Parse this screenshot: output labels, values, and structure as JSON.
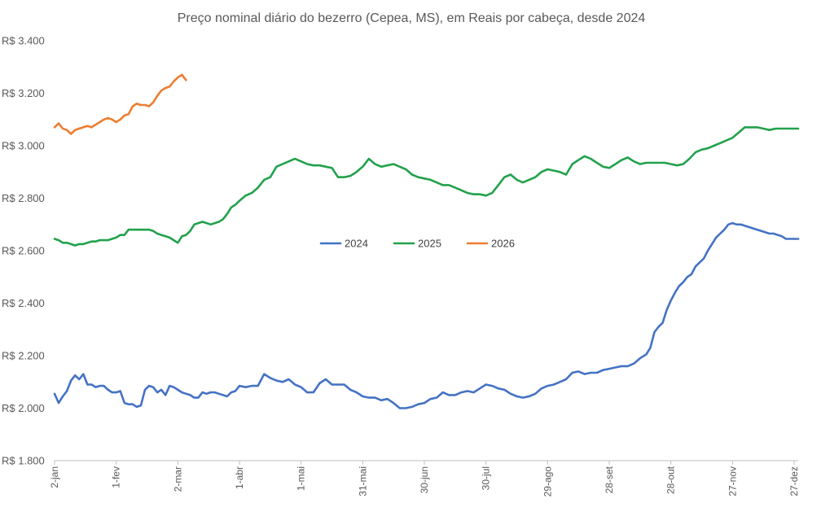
{
  "chart_data": {
    "type": "line",
    "title": "Preço nominal diário do bezerro (Cepea, MS), em Reais por cabeça, desde 2024",
    "xlabel": "",
    "ylabel": "",
    "ylim": [
      1800,
      3400
    ],
    "yticks": [
      1800,
      2000,
      2200,
      2400,
      2600,
      2800,
      3000,
      3200,
      3400
    ],
    "ytick_labels": [
      "R$ 1.800",
      "R$ 2.000",
      "R$ 2.200",
      "R$ 2.400",
      "R$ 2.600",
      "R$ 2.800",
      "R$ 3.000",
      "R$ 3.200",
      "R$ 3.400"
    ],
    "xlim_day_of_year": [
      2,
      364
    ],
    "xticks_day_of_year": [
      2,
      32,
      62,
      92,
      122,
      152,
      182,
      212,
      242,
      272,
      302,
      332,
      362
    ],
    "xtick_labels": [
      "2-jan",
      "1-fev",
      "2-mar",
      "1-abr",
      "1-mai",
      "31-mai",
      "30-jun",
      "30-jul",
      "29-ago",
      "28-set",
      "28-out",
      "27-nov",
      "27-dez"
    ],
    "grid": false,
    "legend_position": "center",
    "series": [
      {
        "name": "2024",
        "color": "#4472C4",
        "x": [
          2,
          4,
          6,
          8,
          10,
          12,
          14,
          16,
          18,
          20,
          22,
          24,
          26,
          28,
          30,
          32,
          34,
          36,
          38,
          40,
          42,
          44,
          46,
          48,
          50,
          52,
          54,
          56,
          58,
          60,
          62,
          64,
          66,
          68,
          70,
          72,
          74,
          76,
          78,
          80,
          82,
          84,
          86,
          88,
          90,
          92,
          95,
          98,
          101,
          104,
          107,
          110,
          113,
          116,
          119,
          122,
          125,
          128,
          131,
          134,
          137,
          140,
          143,
          146,
          149,
          152,
          155,
          158,
          161,
          164,
          167,
          170,
          173,
          176,
          179,
          182,
          185,
          188,
          191,
          194,
          197,
          200,
          203,
          206,
          209,
          212,
          215,
          218,
          221,
          224,
          227,
          230,
          233,
          236,
          239,
          242,
          245,
          248,
          251,
          254,
          257,
          260,
          263,
          266,
          269,
          272,
          275,
          278,
          281,
          284,
          287,
          290,
          292,
          294,
          296,
          298,
          300,
          302,
          304,
          306,
          308,
          310,
          312,
          314,
          316,
          318,
          320,
          322,
          324,
          326,
          328,
          330,
          332,
          334,
          336,
          338,
          340,
          342,
          344,
          346,
          348,
          350,
          352,
          354,
          356,
          358,
          360,
          362,
          364
        ],
        "values": [
          2055,
          2020,
          2045,
          2065,
          2105,
          2125,
          2110,
          2130,
          2090,
          2090,
          2080,
          2085,
          2085,
          2070,
          2060,
          2060,
          2065,
          2020,
          2015,
          2015,
          2005,
          2010,
          2070,
          2085,
          2080,
          2060,
          2070,
          2050,
          2085,
          2080,
          2070,
          2060,
          2055,
          2050,
          2040,
          2040,
          2060,
          2055,
          2060,
          2060,
          2055,
          2050,
          2045,
          2060,
          2065,
          2085,
          2080,
          2085,
          2085,
          2130,
          2115,
          2105,
          2100,
          2110,
          2090,
          2080,
          2060,
          2060,
          2095,
          2110,
          2090,
          2090,
          2090,
          2070,
          2060,
          2045,
          2040,
          2040,
          2030,
          2035,
          2020,
          2000,
          2000,
          2005,
          2015,
          2020,
          2035,
          2040,
          2060,
          2050,
          2050,
          2060,
          2065,
          2060,
          2075,
          2090,
          2085,
          2075,
          2070,
          2055,
          2045,
          2040,
          2045,
          2055,
          2075,
          2085,
          2090,
          2100,
          2110,
          2135,
          2140,
          2130,
          2135,
          2135,
          2145,
          2150,
          2155,
          2160,
          2160,
          2170,
          2190,
          2205,
          2230,
          2290,
          2310,
          2325,
          2375,
          2410,
          2440,
          2465,
          2480,
          2500,
          2510,
          2540,
          2555,
          2570,
          2600,
          2625,
          2650,
          2665,
          2680,
          2700,
          2705,
          2700,
          2700,
          2695,
          2690,
          2685,
          2680,
          2675,
          2670,
          2665,
          2665,
          2660,
          2655,
          2645,
          2645,
          2645,
          2645
        ]
      },
      {
        "name": "2025",
        "color": "#22A14C",
        "x": [
          2,
          4,
          6,
          8,
          10,
          12,
          14,
          16,
          18,
          20,
          22,
          24,
          26,
          28,
          30,
          32,
          34,
          36,
          38,
          40,
          42,
          44,
          46,
          48,
          50,
          52,
          54,
          56,
          58,
          60,
          62,
          64,
          66,
          68,
          70,
          72,
          74,
          76,
          78,
          80,
          82,
          84,
          86,
          88,
          90,
          92,
          95,
          98,
          101,
          104,
          107,
          110,
          113,
          116,
          119,
          122,
          125,
          128,
          131,
          134,
          137,
          140,
          143,
          146,
          149,
          152,
          155,
          158,
          161,
          164,
          167,
          170,
          173,
          176,
          179,
          182,
          185,
          188,
          191,
          194,
          197,
          200,
          203,
          206,
          209,
          212,
          215,
          218,
          221,
          224,
          227,
          230,
          233,
          236,
          239,
          242,
          245,
          248,
          251,
          254,
          257,
          260,
          263,
          266,
          269,
          272,
          275,
          278,
          281,
          284,
          287,
          290,
          293,
          296,
          299,
          302,
          305,
          308,
          311,
          314,
          317,
          320,
          323,
          326,
          329,
          332,
          335,
          338,
          341,
          344,
          347,
          350,
          353,
          356,
          359,
          362,
          364
        ],
        "values": [
          2645,
          2640,
          2630,
          2630,
          2625,
          2620,
          2625,
          2625,
          2630,
          2635,
          2635,
          2640,
          2640,
          2640,
          2645,
          2650,
          2660,
          2660,
          2680,
          2680,
          2680,
          2680,
          2680,
          2680,
          2675,
          2665,
          2660,
          2655,
          2650,
          2640,
          2630,
          2655,
          2660,
          2675,
          2700,
          2705,
          2710,
          2705,
          2700,
          2705,
          2710,
          2720,
          2740,
          2765,
          2775,
          2790,
          2810,
          2820,
          2840,
          2870,
          2880,
          2920,
          2930,
          2940,
          2950,
          2940,
          2930,
          2925,
          2925,
          2920,
          2915,
          2880,
          2880,
          2885,
          2900,
          2920,
          2950,
          2930,
          2920,
          2925,
          2930,
          2920,
          2910,
          2890,
          2880,
          2875,
          2870,
          2860,
          2850,
          2850,
          2840,
          2830,
          2820,
          2815,
          2815,
          2810,
          2820,
          2850,
          2880,
          2890,
          2870,
          2860,
          2870,
          2880,
          2900,
          2910,
          2905,
          2900,
          2890,
          2930,
          2945,
          2960,
          2950,
          2935,
          2920,
          2915,
          2930,
          2945,
          2955,
          2940,
          2930,
          2935,
          2935,
          2935,
          2935,
          2930,
          2925,
          2930,
          2950,
          2975,
          2985,
          2990,
          3000,
          3010,
          3020,
          3030,
          3050,
          3070,
          3070,
          3070,
          3065,
          3060,
          3065,
          3065,
          3065,
          3065,
          3065
        ]
      },
      {
        "name": "2026",
        "color": "#ED7D31",
        "x": [
          2,
          4,
          6,
          8,
          10,
          12,
          14,
          16,
          18,
          20,
          22,
          24,
          26,
          28,
          30,
          32,
          34,
          36,
          38,
          40,
          42,
          44,
          46,
          48,
          50,
          52,
          54,
          56,
          58,
          60,
          62,
          64,
          66
        ],
        "values": [
          3070,
          3085,
          3065,
          3060,
          3045,
          3060,
          3065,
          3070,
          3075,
          3070,
          3080,
          3090,
          3100,
          3105,
          3100,
          3090,
          3100,
          3115,
          3120,
          3150,
          3160,
          3155,
          3155,
          3150,
          3165,
          3190,
          3210,
          3220,
          3225,
          3245,
          3260,
          3270,
          3250
        ]
      }
    ]
  }
}
